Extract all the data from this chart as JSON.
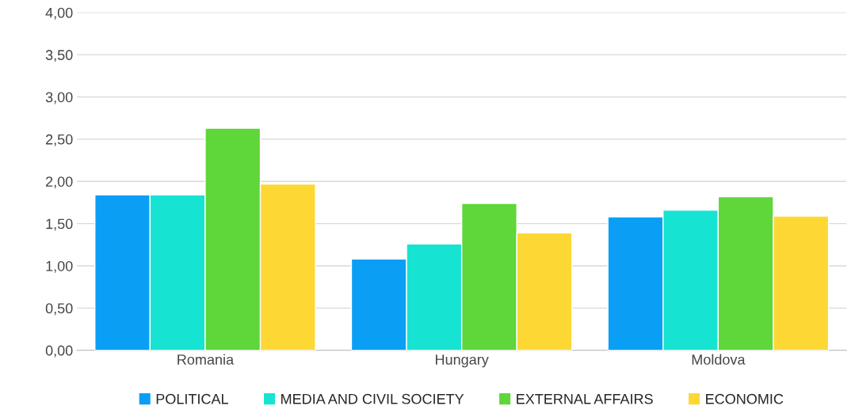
{
  "chart_data": {
    "type": "bar",
    "categories": [
      "Romania",
      "Hungary",
      "Moldova"
    ],
    "series": [
      {
        "name": "POLITICAL",
        "color": "#0a9ff5",
        "values": [
          1.84,
          1.08,
          1.58
        ]
      },
      {
        "name": "MEDIA AND CIVIL SOCIETY",
        "color": "#17e3d3",
        "values": [
          1.84,
          1.26,
          1.66
        ]
      },
      {
        "name": "EXTERNAL AFFAIRS",
        "color": "#5fd63a",
        "values": [
          2.63,
          1.74,
          1.82
        ]
      },
      {
        "name": "ECONOMIC",
        "color": "#fdd835",
        "values": [
          1.97,
          1.39,
          1.59
        ]
      }
    ],
    "ylim": [
      0,
      4
    ],
    "yticks": [
      {
        "value": 0,
        "label": "0,00"
      },
      {
        "value": 0.5,
        "label": "0,50"
      },
      {
        "value": 1,
        "label": "1,00"
      },
      {
        "value": 1.5,
        "label": "1,50"
      },
      {
        "value": 2,
        "label": "2,00"
      },
      {
        "value": 2.5,
        "label": "2,50"
      },
      {
        "value": 3,
        "label": "3,00"
      },
      {
        "value": 3.5,
        "label": "3,50"
      },
      {
        "value": 4,
        "label": "4,00"
      }
    ],
    "grid": "y",
    "legend": "bottom"
  }
}
